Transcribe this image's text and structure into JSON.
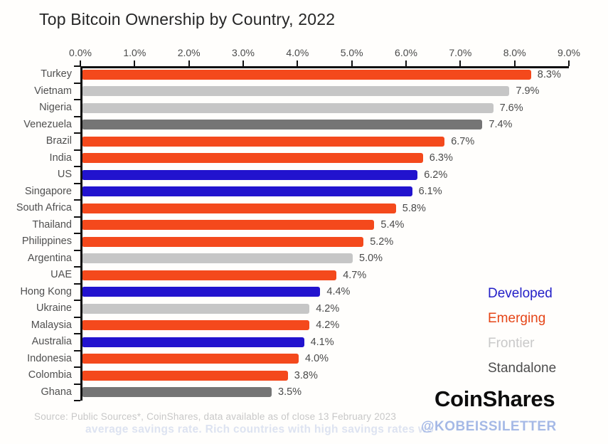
{
  "chart_data": {
    "type": "bar",
    "orientation": "horizontal",
    "title": "Top Bitcoin Ownership by Country, 2022",
    "xlabel": "",
    "ylabel": "",
    "x_min": 0,
    "x_max": 9,
    "x_ticks": [
      "0.0%",
      "1.0%",
      "2.0%",
      "3.0%",
      "4.0%",
      "5.0%",
      "6.0%",
      "7.0%",
      "8.0%",
      "9.0%"
    ],
    "grid": false,
    "categories": [
      "Turkey",
      "Vietnam",
      "Nigeria",
      "Venezuela",
      "Brazil",
      "India",
      "US",
      "Singapore",
      "South Africa",
      "Thailand",
      "Philippines",
      "Argentina",
      "UAE",
      "Hong Kong",
      "Ukraine",
      "Malaysia",
      "Australia",
      "Indonesia",
      "Colombia",
      "Ghana"
    ],
    "values": [
      8.3,
      7.9,
      7.6,
      7.4,
      6.7,
      6.3,
      6.2,
      6.1,
      5.8,
      5.4,
      5.2,
      5.0,
      4.7,
      4.4,
      4.2,
      4.2,
      4.1,
      4.0,
      3.8,
      3.5
    ],
    "value_labels": [
      "8.3%",
      "7.9%",
      "7.6%",
      "7.4%",
      "6.7%",
      "6.3%",
      "6.2%",
      "6.1%",
      "5.8%",
      "5.4%",
      "5.2%",
      "5.0%",
      "4.7%",
      "4.4%",
      "4.2%",
      "4.2%",
      "4.1%",
      "4.0%",
      "3.8%",
      "3.5%"
    ],
    "groups": [
      "Emerging",
      "Frontier",
      "Frontier",
      "Standalone",
      "Emerging",
      "Emerging",
      "Developed",
      "Developed",
      "Emerging",
      "Emerging",
      "Emerging",
      "Frontier",
      "Emerging",
      "Developed",
      "Frontier",
      "Emerging",
      "Developed",
      "Emerging",
      "Emerging",
      "Standalone"
    ],
    "group_colors": {
      "Developed": "#2213CE",
      "Emerging": "#F4491C",
      "Frontier": "#C6C6C6",
      "Standalone": "#757575"
    },
    "legend": {
      "position": "right-bottom",
      "entries": [
        {
          "label": "Developed",
          "color": "#2420C8"
        },
        {
          "label": "Emerging",
          "color": "#E54517"
        },
        {
          "label": "Frontier",
          "color": "#C9C9C9"
        },
        {
          "label": "Standalone",
          "color": "#4D4D4D"
        }
      ]
    }
  },
  "footer": {
    "source": "Source: Public Sources*, CoinShares, data available as of close 13 February 2023",
    "ghost_text": "average savings rate. Rich countries with high savings rates wo",
    "brand": "CoinShares",
    "handle": "@KOBEISSILETTER"
  }
}
